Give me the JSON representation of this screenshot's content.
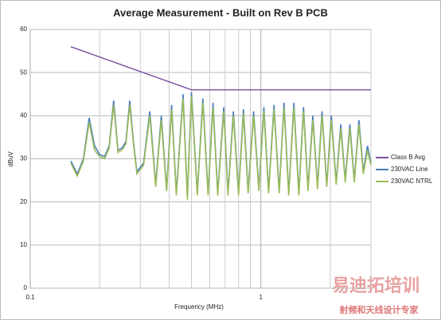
{
  "chart_data": {
    "type": "line",
    "title": "Average Measurement - Built on Rev B PCB",
    "x_label": "Frequency (MHz)",
    "y_label": "dBuV",
    "xscale": "log",
    "xlim": [
      0.1,
      3
    ],
    "xticks": [
      0.1,
      1
    ],
    "xgrid_minor": [
      0.2,
      0.3,
      0.4,
      0.5,
      0.6,
      0.7,
      0.8,
      0.9,
      2,
      3
    ],
    "ylim": [
      0,
      60
    ],
    "yticks": [
      0,
      10,
      20,
      30,
      40,
      50,
      60
    ],
    "grid": true,
    "legend": "right",
    "series": [
      {
        "name": "Class B Avg",
        "color": "#7b4fa0",
        "x": [
          0.15,
          0.5,
          3
        ],
        "values": [
          56,
          46,
          46
        ]
      },
      {
        "name": "230VAC Line",
        "color": "#4a7ebb",
        "x": [
          0.15,
          0.16,
          0.17,
          0.18,
          0.19,
          0.2,
          0.21,
          0.22,
          0.23,
          0.24,
          0.25,
          0.26,
          0.27,
          0.28,
          0.29,
          0.31,
          0.33,
          0.35,
          0.37,
          0.39,
          0.41,
          0.43,
          0.46,
          0.48,
          0.5,
          0.53,
          0.56,
          0.59,
          0.62,
          0.65,
          0.69,
          0.72,
          0.76,
          0.8,
          0.84,
          0.88,
          0.93,
          0.98,
          1.03,
          1.08,
          1.14,
          1.2,
          1.26,
          1.32,
          1.39,
          1.46,
          1.53,
          1.6,
          1.68,
          1.76,
          1.84,
          1.93,
          2.02,
          2.12,
          2.22,
          2.32,
          2.43,
          2.54,
          2.66,
          2.78,
          2.9,
          3.0
        ],
        "values": [
          29.5,
          26.5,
          30,
          39.5,
          33,
          31,
          30.5,
          33,
          43.5,
          32,
          32.5,
          34,
          43.5,
          34,
          27,
          29,
          41,
          24,
          40,
          23,
          42.5,
          22,
          45,
          21,
          45.5,
          22,
          44,
          22,
          43,
          22,
          42,
          22,
          41,
          22,
          41.5,
          22.5,
          41,
          23,
          42,
          22.5,
          42.5,
          22.5,
          43,
          22,
          43,
          22,
          42,
          23,
          40,
          23.5,
          41,
          24,
          40,
          24.5,
          38,
          25,
          38,
          25,
          39,
          27,
          33,
          29
        ]
      },
      {
        "name": "230VAC NTRL",
        "color": "#9bbb59",
        "x": [
          0.15,
          0.16,
          0.17,
          0.18,
          0.19,
          0.2,
          0.21,
          0.22,
          0.23,
          0.24,
          0.25,
          0.26,
          0.27,
          0.28,
          0.29,
          0.31,
          0.33,
          0.35,
          0.37,
          0.39,
          0.41,
          0.43,
          0.46,
          0.48,
          0.5,
          0.53,
          0.56,
          0.59,
          0.62,
          0.65,
          0.69,
          0.72,
          0.76,
          0.8,
          0.84,
          0.88,
          0.93,
          0.98,
          1.03,
          1.08,
          1.14,
          1.2,
          1.26,
          1.32,
          1.39,
          1.46,
          1.53,
          1.6,
          1.68,
          1.76,
          1.84,
          1.93,
          2.02,
          2.12,
          2.22,
          2.32,
          2.43,
          2.54,
          2.66,
          2.78,
          2.9,
          3.0
        ],
        "values": [
          29,
          26,
          29.5,
          38.5,
          32,
          30.5,
          30,
          32.5,
          42.5,
          31.5,
          32,
          33.5,
          42.5,
          33.5,
          26.5,
          28.5,
          40,
          23.5,
          39,
          22.5,
          41.5,
          21.5,
          44,
          20.5,
          44.5,
          21.5,
          43,
          21.5,
          42,
          21.5,
          41,
          21.5,
          40,
          21.5,
          40.5,
          22,
          40,
          22.5,
          41,
          22,
          41.5,
          22,
          42,
          21.5,
          42,
          21.5,
          41,
          22.5,
          39,
          23,
          40,
          23.5,
          39,
          24,
          37,
          24.5,
          37,
          24.5,
          38,
          26.5,
          32,
          28.5
        ]
      }
    ]
  },
  "watermark": [
    "易迪拓培训",
    "射频和天线设计专家"
  ]
}
